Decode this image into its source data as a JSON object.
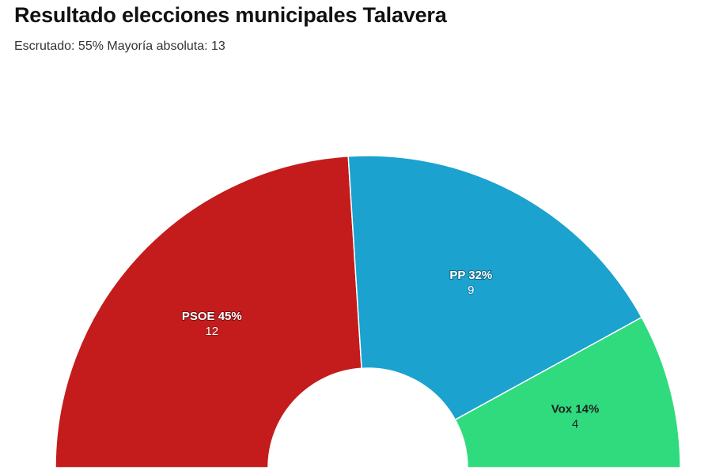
{
  "title": "Resultado elecciones municipales Talavera",
  "subtitle": "Escrutado: 55% Mayoría absoluta: 13",
  "chart_data": {
    "type": "pie",
    "variant": "half-donut (parliament)",
    "categories": [
      "PSOE",
      "PP",
      "Vox"
    ],
    "series": [
      {
        "values": [
          12,
          9,
          4
        ],
        "percents": [
          45,
          32,
          14
        ]
      }
    ],
    "labels": [
      "PSOE 45%",
      "PP 32%",
      "Vox 14%"
    ],
    "seat_labels": [
      "12",
      "9",
      "4"
    ],
    "colors": [
      "#c41c1c",
      "#1ba2cf",
      "#2fdb7d"
    ],
    "total_seats": 25,
    "legend": "none"
  }
}
